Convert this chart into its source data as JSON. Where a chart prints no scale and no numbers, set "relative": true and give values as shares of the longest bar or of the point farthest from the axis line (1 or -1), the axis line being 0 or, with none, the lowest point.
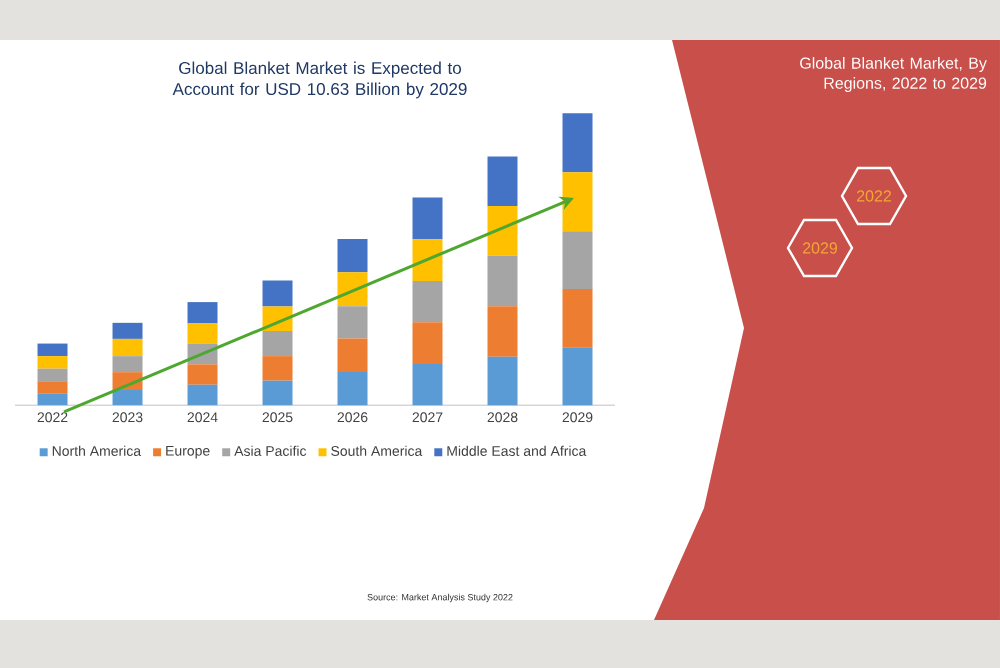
{
  "chart_data": {
    "type": "bar",
    "stacked": true,
    "relative": true,
    "legend": "bottom",
    "title": "Global Blanket Market is Expected to Account for USD 10.63 Billion by 2029",
    "subtitle": "Global Blanket Market, By Regions, 2022 to 2029",
    "categories": [
      "2022",
      "2023",
      "2024",
      "2025",
      "2026",
      "2027",
      "2028",
      "2029"
    ],
    "series": [
      {
        "name": "North America",
        "color": "#5b9bd5",
        "values": [
          0.039,
          0.052,
          0.07,
          0.084,
          0.114,
          0.141,
          0.166,
          0.198
        ]
      },
      {
        "name": "Europe",
        "color": "#ed7d31",
        "values": [
          0.043,
          0.061,
          0.07,
          0.084,
          0.114,
          0.143,
          0.173,
          0.2
        ]
      },
      {
        "name": "Asia Pacific",
        "color": "#a5a5a5",
        "values": [
          0.043,
          0.055,
          0.07,
          0.086,
          0.111,
          0.141,
          0.173,
          0.198
        ]
      },
      {
        "name": "South America",
        "color": "#ffc000",
        "values": [
          0.043,
          0.059,
          0.07,
          0.084,
          0.116,
          0.143,
          0.17,
          0.202
        ]
      },
      {
        "name": "Middle East and Africa",
        "color": "#4472c4",
        "values": [
          0.043,
          0.055,
          0.073,
          0.089,
          0.114,
          0.143,
          0.17,
          0.202
        ]
      }
    ],
    "annotations": [
      "2022",
      "2029",
      "Source: Market Analysis Study 2022"
    ]
  }
}
